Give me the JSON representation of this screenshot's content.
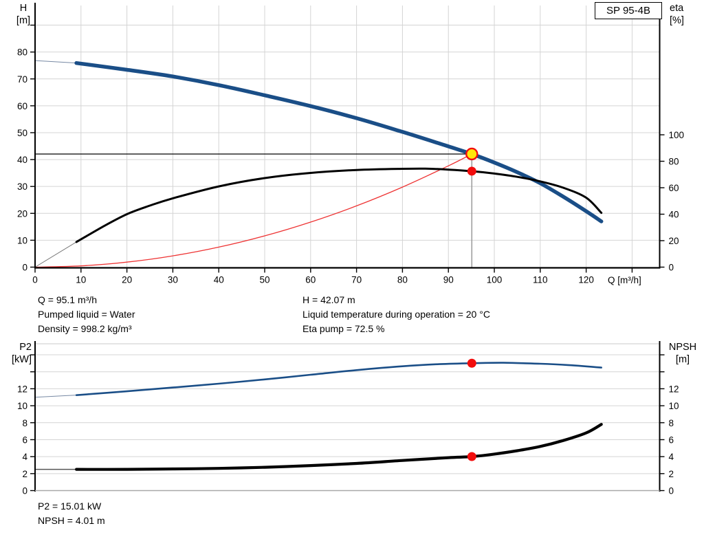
{
  "pump_model": "SP 95-4B",
  "colors": {
    "curve_blue": "#1a4e87",
    "curve_black": "#000000",
    "system_curve_red": "#ee3333",
    "marker_red": "#f20d0d",
    "marker_yellow_fill": "#ffe60a",
    "grid": "#d4d4d4",
    "duty_vertical_gray": "#999999",
    "lead_blue": "#7688a3",
    "lead_gray": "#7a7a7a"
  },
  "top_chart": {
    "left_axis_label": [
      "H",
      "[m]"
    ],
    "right_axis_label": [
      "eta",
      "[%]"
    ],
    "x_axis_label": "Q [m³/h]"
  },
  "bottom_chart": {
    "left_axis_label": [
      "P2",
      "[kW]"
    ],
    "right_axis_label": [
      "NPSH",
      "[m]"
    ]
  },
  "operating_point_info": {
    "col1": [
      "Q = 95.1 m³/h",
      "Pumped liquid = Water",
      "Density = 998.2 kg/m³"
    ],
    "col2": [
      "H = 42.07 m",
      "Liquid temperature during operation = 20 °C",
      "Eta pump = 72.5 %"
    ]
  },
  "bottom_info": [
    "P2 = 15.01 kW",
    "NPSH = 4.01 m"
  ],
  "chart_data": [
    {
      "id": "performance",
      "type": "line",
      "title": "SP 95-4B",
      "xlabel": "Q [m³/h]",
      "x_range": [
        0,
        136
      ],
      "x_ticks_labeled": [
        0,
        10,
        20,
        30,
        40,
        50,
        60,
        70,
        80,
        90,
        100,
        110,
        120
      ],
      "x_ticks_minor": [
        130
      ],
      "left_axis": {
        "label": "H [m]",
        "range": [
          0,
          97.3
        ],
        "ticks_labeled": [
          0,
          10,
          20,
          30,
          40,
          50,
          60,
          70,
          80
        ],
        "ticks_minor": [
          90
        ],
        "grid": [
          10,
          20,
          30,
          40,
          50,
          60,
          70,
          80,
          90
        ]
      },
      "right_axis": {
        "label": "eta [%]",
        "range": [
          0,
          197.7
        ],
        "ticks_labeled": [
          0,
          20,
          40,
          60,
          80,
          100
        ],
        "ticks_minor": []
      },
      "series": [
        {
          "name": "system-curve",
          "axis": "left",
          "color": "#ee3333",
          "width": 1.3,
          "points": [
            [
              0,
              0
            ],
            [
              10,
              0.47
            ],
            [
              20,
              1.86
            ],
            [
              30,
              4.19
            ],
            [
              40,
              7.44
            ],
            [
              50,
              11.63
            ],
            [
              60,
              16.75
            ],
            [
              70,
              22.79
            ],
            [
              80,
              29.77
            ],
            [
              90,
              37.67
            ],
            [
              95.1,
              42.07
            ]
          ]
        },
        {
          "name": "pump-curve-lead",
          "axis": "left",
          "color": "#7688a3",
          "width": 1,
          "points": [
            [
              0,
              76.8
            ],
            [
              9,
              75.9
            ]
          ]
        },
        {
          "name": "pump-curve",
          "axis": "left",
          "color": "#1a4e87",
          "width": 5.5,
          "points": [
            [
              9,
              75.9
            ],
            [
              20,
              73.4
            ],
            [
              30,
              70.9
            ],
            [
              40,
              67.7
            ],
            [
              50,
              63.9
            ],
            [
              60,
              59.9
            ],
            [
              70,
              55.4
            ],
            [
              80,
              50.3
            ],
            [
              90,
              44.9
            ],
            [
              95.1,
              42.07
            ],
            [
              100,
              38.9
            ],
            [
              105,
              35.3
            ],
            [
              110,
              31.2
            ],
            [
              115,
              26.2
            ],
            [
              120,
              20.8
            ],
            [
              123.3,
              17.0
            ]
          ]
        },
        {
          "name": "efficiency-curve-lead",
          "axis": "right",
          "color": "#7a7a7a",
          "width": 1,
          "points": [
            [
              0,
              0
            ],
            [
              9,
              19
            ]
          ]
        },
        {
          "name": "efficiency-curve",
          "axis": "right",
          "color": "#000000",
          "width": 3,
          "points": [
            [
              9,
              19
            ],
            [
              15,
              31
            ],
            [
              20,
              40
            ],
            [
              25,
              46.5
            ],
            [
              30,
              52
            ],
            [
              40,
              61
            ],
            [
              50,
              67.3
            ],
            [
              60,
              71.2
            ],
            [
              70,
              73.4
            ],
            [
              80,
              74.3
            ],
            [
              85,
              74.4
            ],
            [
              90,
              73.7
            ],
            [
              95.1,
              72.5
            ],
            [
              100,
              70.7
            ],
            [
              105,
              68.2
            ],
            [
              110,
              64.8
            ],
            [
              115,
              60.0
            ],
            [
              120,
              52.5
            ],
            [
              123.3,
              41.0
            ]
          ]
        }
      ],
      "duty": {
        "q": 95.1,
        "h": 42.07
      },
      "markers": [
        {
          "name": "duty-point-marker",
          "q": 95.1,
          "value": 42.07,
          "axis": "left",
          "shape": "circle-yellow",
          "r": 8
        },
        {
          "name": "eta-point-marker",
          "q": 95.1,
          "value": 72.5,
          "axis": "right",
          "shape": "dot-red",
          "r": 6.5
        }
      ]
    },
    {
      "id": "power-npsh",
      "type": "line",
      "xlabel": "",
      "x_range": [
        0,
        136
      ],
      "x_ticks_labeled": [],
      "x_ticks_minor": [],
      "left_axis": {
        "label": "P2 [kW]",
        "range": [
          0,
          17.3
        ],
        "ticks_labeled": [
          0,
          2,
          4,
          6,
          8,
          10,
          12
        ],
        "ticks_minor": [
          14,
          16
        ],
        "grid": [
          2,
          4,
          6,
          8,
          10,
          12,
          14,
          16
        ]
      },
      "right_axis": {
        "label": "NPSH [m]",
        "range": [
          0,
          17.3
        ],
        "ticks_labeled": [
          0,
          2,
          4,
          6,
          8,
          10,
          12
        ],
        "ticks_minor": [
          14,
          16
        ]
      },
      "series": [
        {
          "name": "p2-curve-lead",
          "axis": "left",
          "color": "#7688a3",
          "width": 1,
          "points": [
            [
              0,
              11.0
            ],
            [
              9,
              11.25
            ]
          ]
        },
        {
          "name": "p2-curve",
          "axis": "left",
          "color": "#1a4e87",
          "width": 2.6,
          "points": [
            [
              9,
              11.25
            ],
            [
              20,
              11.7
            ],
            [
              30,
              12.15
            ],
            [
              40,
              12.6
            ],
            [
              50,
              13.1
            ],
            [
              60,
              13.65
            ],
            [
              70,
              14.2
            ],
            [
              80,
              14.65
            ],
            [
              88,
              14.9
            ],
            [
              95.1,
              15.01
            ],
            [
              102,
              15.06
            ],
            [
              110,
              14.95
            ],
            [
              116,
              14.8
            ],
            [
              123.3,
              14.5
            ]
          ]
        },
        {
          "name": "npsh-curve-lead",
          "axis": "right",
          "color": "#555555",
          "width": 1.5,
          "points": [
            [
              0,
              2.5
            ],
            [
              9,
              2.5
            ]
          ]
        },
        {
          "name": "npsh-curve",
          "axis": "right",
          "color": "#000000",
          "width": 4.2,
          "points": [
            [
              9,
              2.5
            ],
            [
              20,
              2.5
            ],
            [
              30,
              2.55
            ],
            [
              40,
              2.62
            ],
            [
              50,
              2.75
            ],
            [
              60,
              2.95
            ],
            [
              70,
              3.2
            ],
            [
              80,
              3.55
            ],
            [
              90,
              3.88
            ],
            [
              95.1,
              4.01
            ],
            [
              100,
              4.3
            ],
            [
              105,
              4.7
            ],
            [
              110,
              5.2
            ],
            [
              115,
              5.9
            ],
            [
              120,
              6.8
            ],
            [
              123.3,
              7.8
            ]
          ]
        }
      ],
      "markers": [
        {
          "name": "p2-point-marker",
          "q": 95.1,
          "value": 15.01,
          "axis": "left",
          "shape": "dot-red",
          "r": 6.5
        },
        {
          "name": "npsh-point-marker",
          "q": 95.1,
          "value": 4.01,
          "axis": "right",
          "shape": "dot-red",
          "r": 6.5
        }
      ]
    }
  ]
}
